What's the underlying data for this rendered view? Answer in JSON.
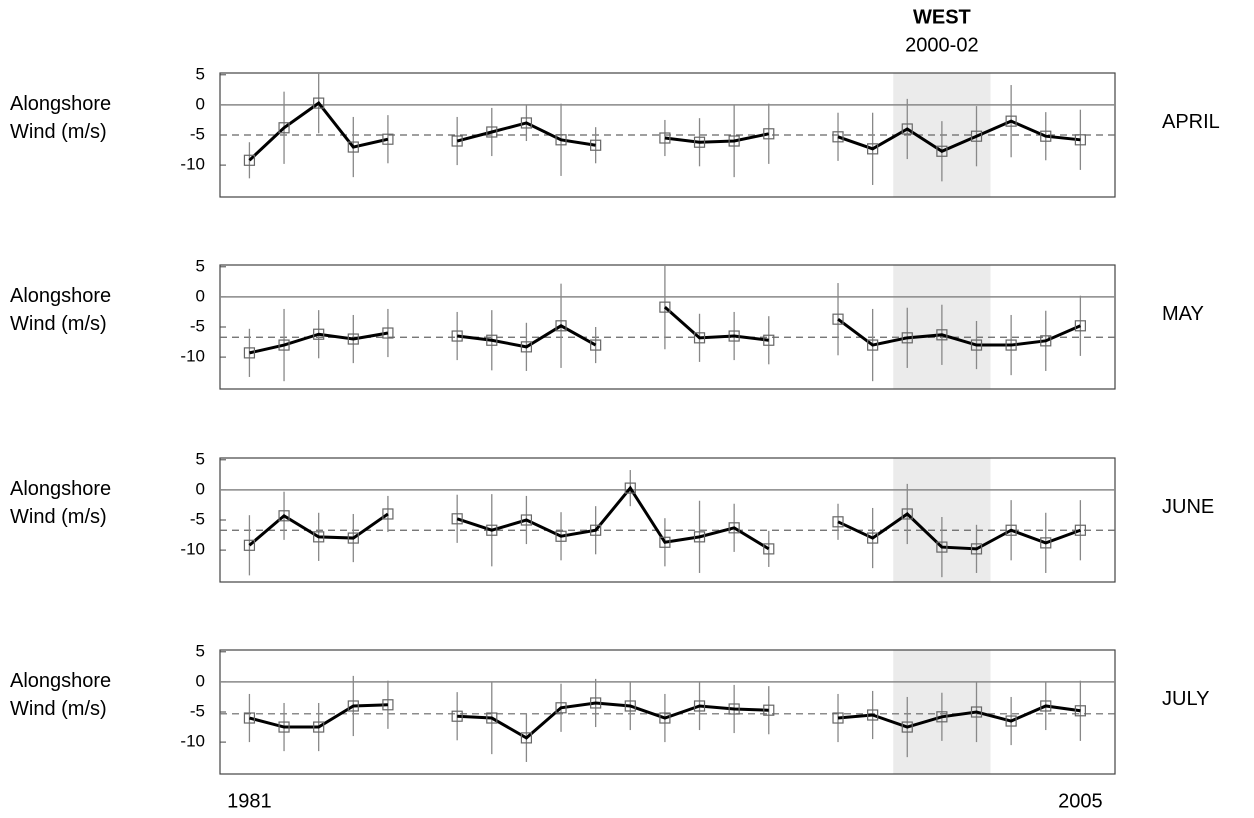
{
  "chart_data": [
    {
      "type": "line",
      "label": "APRIL",
      "ylabel": [
        "Alongshore",
        "Wind (m/s)"
      ],
      "highlight": {
        "title": "WEST",
        "label": "2000-02",
        "range": [
          2000,
          2002
        ]
      },
      "x": [
        1981,
        1982,
        1983,
        1984,
        1985,
        1986,
        1987,
        1988,
        1989,
        1990,
        1991,
        1992,
        1993,
        1994,
        1995,
        1996,
        1997,
        1998,
        1999,
        2000,
        2001,
        2002,
        2003,
        2004,
        2005
      ],
      "series": [
        {
          "color": "#000000",
          "values": [
            -9.2,
            -3.8,
            0.3,
            -7,
            -5.7,
            null,
            -6,
            -4.5,
            -3,
            -5.8,
            -6.7,
            null,
            -5.5,
            -6.2,
            -6,
            -4.8,
            null,
            -5.3,
            -7.3,
            -4,
            -7.7,
            -5.2,
            -2.7,
            -5.2,
            -5.8
          ],
          "errors": [
            3,
            6,
            5,
            5,
            4,
            null,
            4,
            4,
            3,
            6,
            3,
            null,
            3,
            4,
            6,
            5,
            null,
            4,
            6,
            5,
            5,
            5,
            6,
            4,
            5
          ]
        }
      ],
      "mean": -5,
      "xlim": [
        1980.15,
        2006
      ],
      "ylim": [
        -15.3,
        5.3
      ],
      "yticks": [
        5,
        0,
        -5,
        -10
      ]
    },
    {
      "type": "line",
      "label": "MAY",
      "ylabel": [
        "Alongshore",
        "Wind (m/s)"
      ],
      "x": [
        1981,
        1982,
        1983,
        1984,
        1985,
        1986,
        1987,
        1988,
        1989,
        1990,
        1991,
        1992,
        1993,
        1994,
        1995,
        1996,
        1997,
        1998,
        1999,
        2000,
        2001,
        2002,
        2003,
        2004,
        2005
      ],
      "series": [
        {
          "color": "#000000",
          "values": [
            -9.3,
            -8,
            -6.2,
            -7,
            -6,
            null,
            -6.5,
            -7.2,
            -8.3,
            -4.8,
            -8,
            null,
            -1.7,
            -6.8,
            -6.5,
            -7.2,
            null,
            -3.7,
            -8,
            -6.8,
            -6.3,
            -8,
            -8,
            -7.3,
            -4.8
          ],
          "errors": [
            4,
            6,
            4,
            4,
            4,
            null,
            4,
            5,
            4,
            7,
            3,
            null,
            7,
            4,
            4,
            4,
            null,
            6,
            6,
            5,
            5,
            4,
            5,
            5,
            5
          ]
        }
      ],
      "mean": -6.7,
      "xlim": [
        1980.15,
        2006
      ],
      "ylim": [
        -15.3,
        5.3
      ],
      "yticks": [
        5,
        0,
        -5,
        -10
      ]
    },
    {
      "type": "line",
      "label": "JUNE",
      "ylabel": [
        "Alongshore",
        "Wind (m/s)"
      ],
      "x": [
        1981,
        1982,
        1983,
        1984,
        1985,
        1986,
        1987,
        1988,
        1989,
        1990,
        1991,
        1992,
        1993,
        1994,
        1995,
        1996,
        1997,
        1998,
        1999,
        2000,
        2001,
        2002,
        2003,
        2004,
        2005
      ],
      "series": [
        {
          "color": "#000000",
          "values": [
            -9.2,
            -4.3,
            -7.8,
            -8,
            -4,
            null,
            -4.8,
            -6.7,
            -5,
            -7.7,
            -6.7,
            0.3,
            -8.7,
            -7.8,
            -6.3,
            -9.8,
            null,
            -5.3,
            -8,
            -4,
            -9.5,
            -9.8,
            -6.7,
            -8.8,
            -6.7
          ],
          "errors": [
            5,
            4,
            4,
            4,
            3,
            null,
            4,
            6,
            4,
            4,
            4,
            3,
            4,
            6,
            4,
            3,
            null,
            3,
            5,
            5,
            5,
            4,
            5,
            5,
            5
          ]
        }
      ],
      "mean": -6.7,
      "xlim": [
        1980.15,
        2006
      ],
      "ylim": [
        -15.3,
        5.3
      ],
      "yticks": [
        5,
        0,
        -5,
        -10
      ]
    },
    {
      "type": "line",
      "label": "JULY",
      "ylabel": [
        "Alongshore",
        "Wind (m/s)"
      ],
      "x": [
        1981,
        1982,
        1983,
        1984,
        1985,
        1986,
        1987,
        1988,
        1989,
        1990,
        1991,
        1992,
        1993,
        1994,
        1995,
        1996,
        1997,
        1998,
        1999,
        2000,
        2001,
        2002,
        2003,
        2004,
        2005
      ],
      "series": [
        {
          "color": "#000000",
          "values": [
            -6,
            -7.5,
            -7.5,
            -4,
            -3.8,
            null,
            -5.7,
            -6,
            -9.3,
            -4.3,
            -3.5,
            -4,
            -6,
            -4,
            -4.5,
            -4.7,
            null,
            -6,
            -5.5,
            -7.5,
            -5.8,
            -5,
            -6.5,
            -4,
            -4.8
          ],
          "errors": [
            4,
            4,
            4,
            5,
            4,
            null,
            4,
            6,
            4,
            4,
            4,
            4,
            4,
            4,
            4,
            4,
            null,
            4,
            4,
            5,
            4,
            5,
            4,
            4,
            5
          ]
        }
      ],
      "mean": -5.3,
      "xlim": [
        1980.15,
        2006
      ],
      "ylim": [
        -15.3,
        5.3
      ],
      "yticks": [
        5,
        0,
        -5,
        -10
      ],
      "xticks": [
        1981,
        2005
      ]
    }
  ]
}
